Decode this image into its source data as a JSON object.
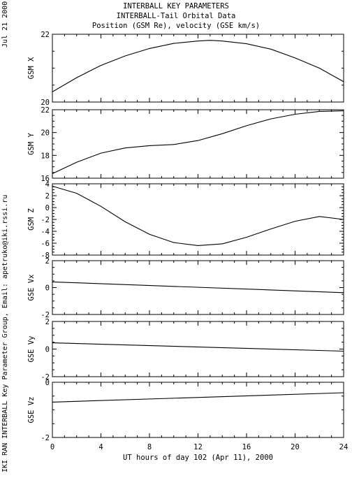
{
  "header": {
    "line1": "INTERBALL KEY PARAMETERS",
    "line2": "INTERBALL-Tail Orbital Data",
    "line3": "Position (GSM Re), velocity (GSE km/s)"
  },
  "side_date": "Jul 21 2000",
  "side_credit": "IKI RAN INTERBALL Key Parameter Group, Email: apetruko@iki.rssi.ru",
  "chart_data": {
    "type": "line",
    "xlabel": "UT hours of day 102 (Apr 11), 2000",
    "xlim": [
      0,
      24
    ],
    "xticks": [
      0,
      4,
      8,
      12,
      16,
      20,
      24
    ],
    "panels": [
      {
        "ylabel": "GSM X",
        "ylim": [
          20,
          22
        ],
        "yticks": [
          20,
          22
        ],
        "x": [
          0,
          2,
          4,
          6,
          8,
          10,
          12,
          13,
          14,
          16,
          18,
          20,
          22,
          24
        ],
        "y": [
          20.3,
          20.72,
          21.08,
          21.36,
          21.58,
          21.73,
          21.8,
          21.82,
          21.8,
          21.72,
          21.56,
          21.3,
          21.0,
          20.6
        ]
      },
      {
        "ylabel": "GSM Y",
        "ylim": [
          16,
          22
        ],
        "yticks": [
          16,
          18,
          20,
          22
        ],
        "x": [
          0,
          2,
          4,
          6,
          8,
          10,
          12,
          14,
          16,
          18,
          20,
          22,
          24
        ],
        "y": [
          16.4,
          17.4,
          18.2,
          18.65,
          18.85,
          18.95,
          19.3,
          19.9,
          20.6,
          21.2,
          21.6,
          21.85,
          21.9
        ]
      },
      {
        "ylabel": "GSM Z",
        "ylim": [
          -8,
          4
        ],
        "yticks": [
          -8,
          -6,
          -4,
          -2,
          0,
          2,
          4
        ],
        "x": [
          0,
          2,
          4,
          6,
          8,
          10,
          12,
          14,
          16,
          18,
          20,
          22,
          24
        ],
        "y": [
          3.6,
          2.4,
          0.2,
          -2.4,
          -4.5,
          -5.9,
          -6.4,
          -6.1,
          -5.0,
          -3.6,
          -2.3,
          -1.5,
          -2.0
        ]
      },
      {
        "ylabel": "GSE Vx",
        "ylim": [
          -2,
          2
        ],
        "yticks": [
          -2,
          0,
          2
        ],
        "x": [
          0,
          24
        ],
        "y": [
          0.42,
          -0.38
        ]
      },
      {
        "ylabel": "GSE Vy",
        "ylim": [
          -2,
          2
        ],
        "yticks": [
          -2,
          0,
          2
        ],
        "x": [
          0,
          24
        ],
        "y": [
          0.45,
          -0.15
        ]
      },
      {
        "ylabel": "GSE Vz",
        "ylim": [
          -2,
          0
        ],
        "yticks": [
          -2,
          0
        ],
        "x": [
          0,
          24
        ],
        "y": [
          -0.72,
          -0.38
        ]
      }
    ]
  }
}
